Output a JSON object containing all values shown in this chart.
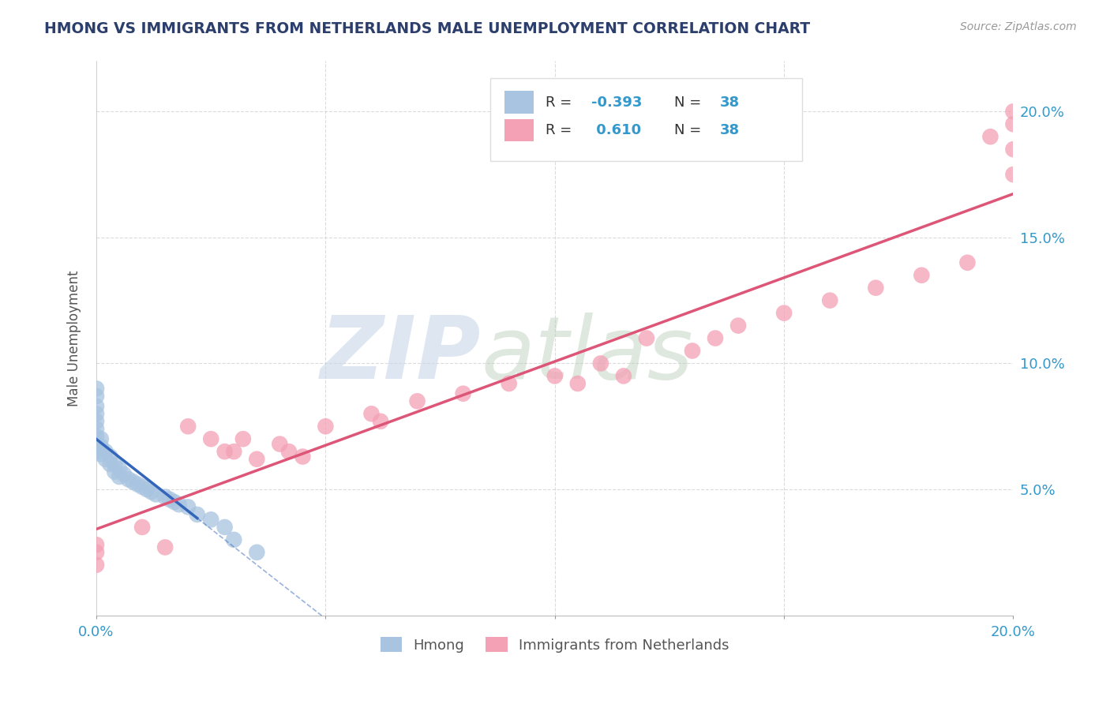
{
  "title": "HMONG VS IMMIGRANTS FROM NETHERLANDS MALE UNEMPLOYMENT CORRELATION CHART",
  "source": "Source: ZipAtlas.com",
  "ylabel": "Male Unemployment",
  "xlim": [
    0,
    0.2
  ],
  "ylim": [
    0,
    0.22
  ],
  "series1_color": "#a8c4e0",
  "series2_color": "#f4a0b5",
  "line1_color": "#3366bb",
  "line2_color": "#dd5577",
  "background_color": "#ffffff",
  "grid_color": "#cccccc",
  "hmong_x": [
    0.0,
    0.0,
    0.0,
    0.0,
    0.0,
    0.0,
    0.0,
    0.0,
    0.001,
    0.001,
    0.001,
    0.001,
    0.002,
    0.002,
    0.002,
    0.003,
    0.003,
    0.004,
    0.004,
    0.005,
    0.005,
    0.006,
    0.007,
    0.008,
    0.009,
    0.01,
    0.011,
    0.012,
    0.013,
    0.014,
    0.015,
    0.016,
    0.017,
    0.018,
    0.019,
    0.02,
    0.022,
    0.025
  ],
  "hmong_y": [
    0.09,
    0.085,
    0.082,
    0.078,
    0.075,
    0.073,
    0.071,
    0.069,
    0.072,
    0.07,
    0.068,
    0.066,
    0.065,
    0.063,
    0.061,
    0.06,
    0.058,
    0.057,
    0.055,
    0.054,
    0.052,
    0.051,
    0.05,
    0.049,
    0.048,
    0.047,
    0.046,
    0.045,
    0.044,
    0.043,
    0.042,
    0.041,
    0.04,
    0.039,
    0.038,
    0.036,
    0.032,
    0.025
  ],
  "netherlands_x": [
    0.0,
    0.0,
    0.0,
    0.01,
    0.015,
    0.02,
    0.022,
    0.025,
    0.03,
    0.032,
    0.035,
    0.037,
    0.04,
    0.043,
    0.045,
    0.05,
    0.053,
    0.06,
    0.062,
    0.065,
    0.07,
    0.075,
    0.08,
    0.085,
    0.09,
    0.1,
    0.105,
    0.11,
    0.12,
    0.13,
    0.14,
    0.15,
    0.16,
    0.17,
    0.18,
    0.19,
    0.2,
    0.2
  ],
  "netherlands_y": [
    0.025,
    0.04,
    0.05,
    0.04,
    0.035,
    0.08,
    0.075,
    0.072,
    0.065,
    0.068,
    0.063,
    0.06,
    0.07,
    0.068,
    0.065,
    0.075,
    0.072,
    0.08,
    0.077,
    0.075,
    0.085,
    0.082,
    0.088,
    0.085,
    0.09,
    0.095,
    0.092,
    0.1,
    0.105,
    0.11,
    0.115,
    0.12,
    0.125,
    0.13,
    0.135,
    0.14,
    0.195,
    0.19
  ]
}
